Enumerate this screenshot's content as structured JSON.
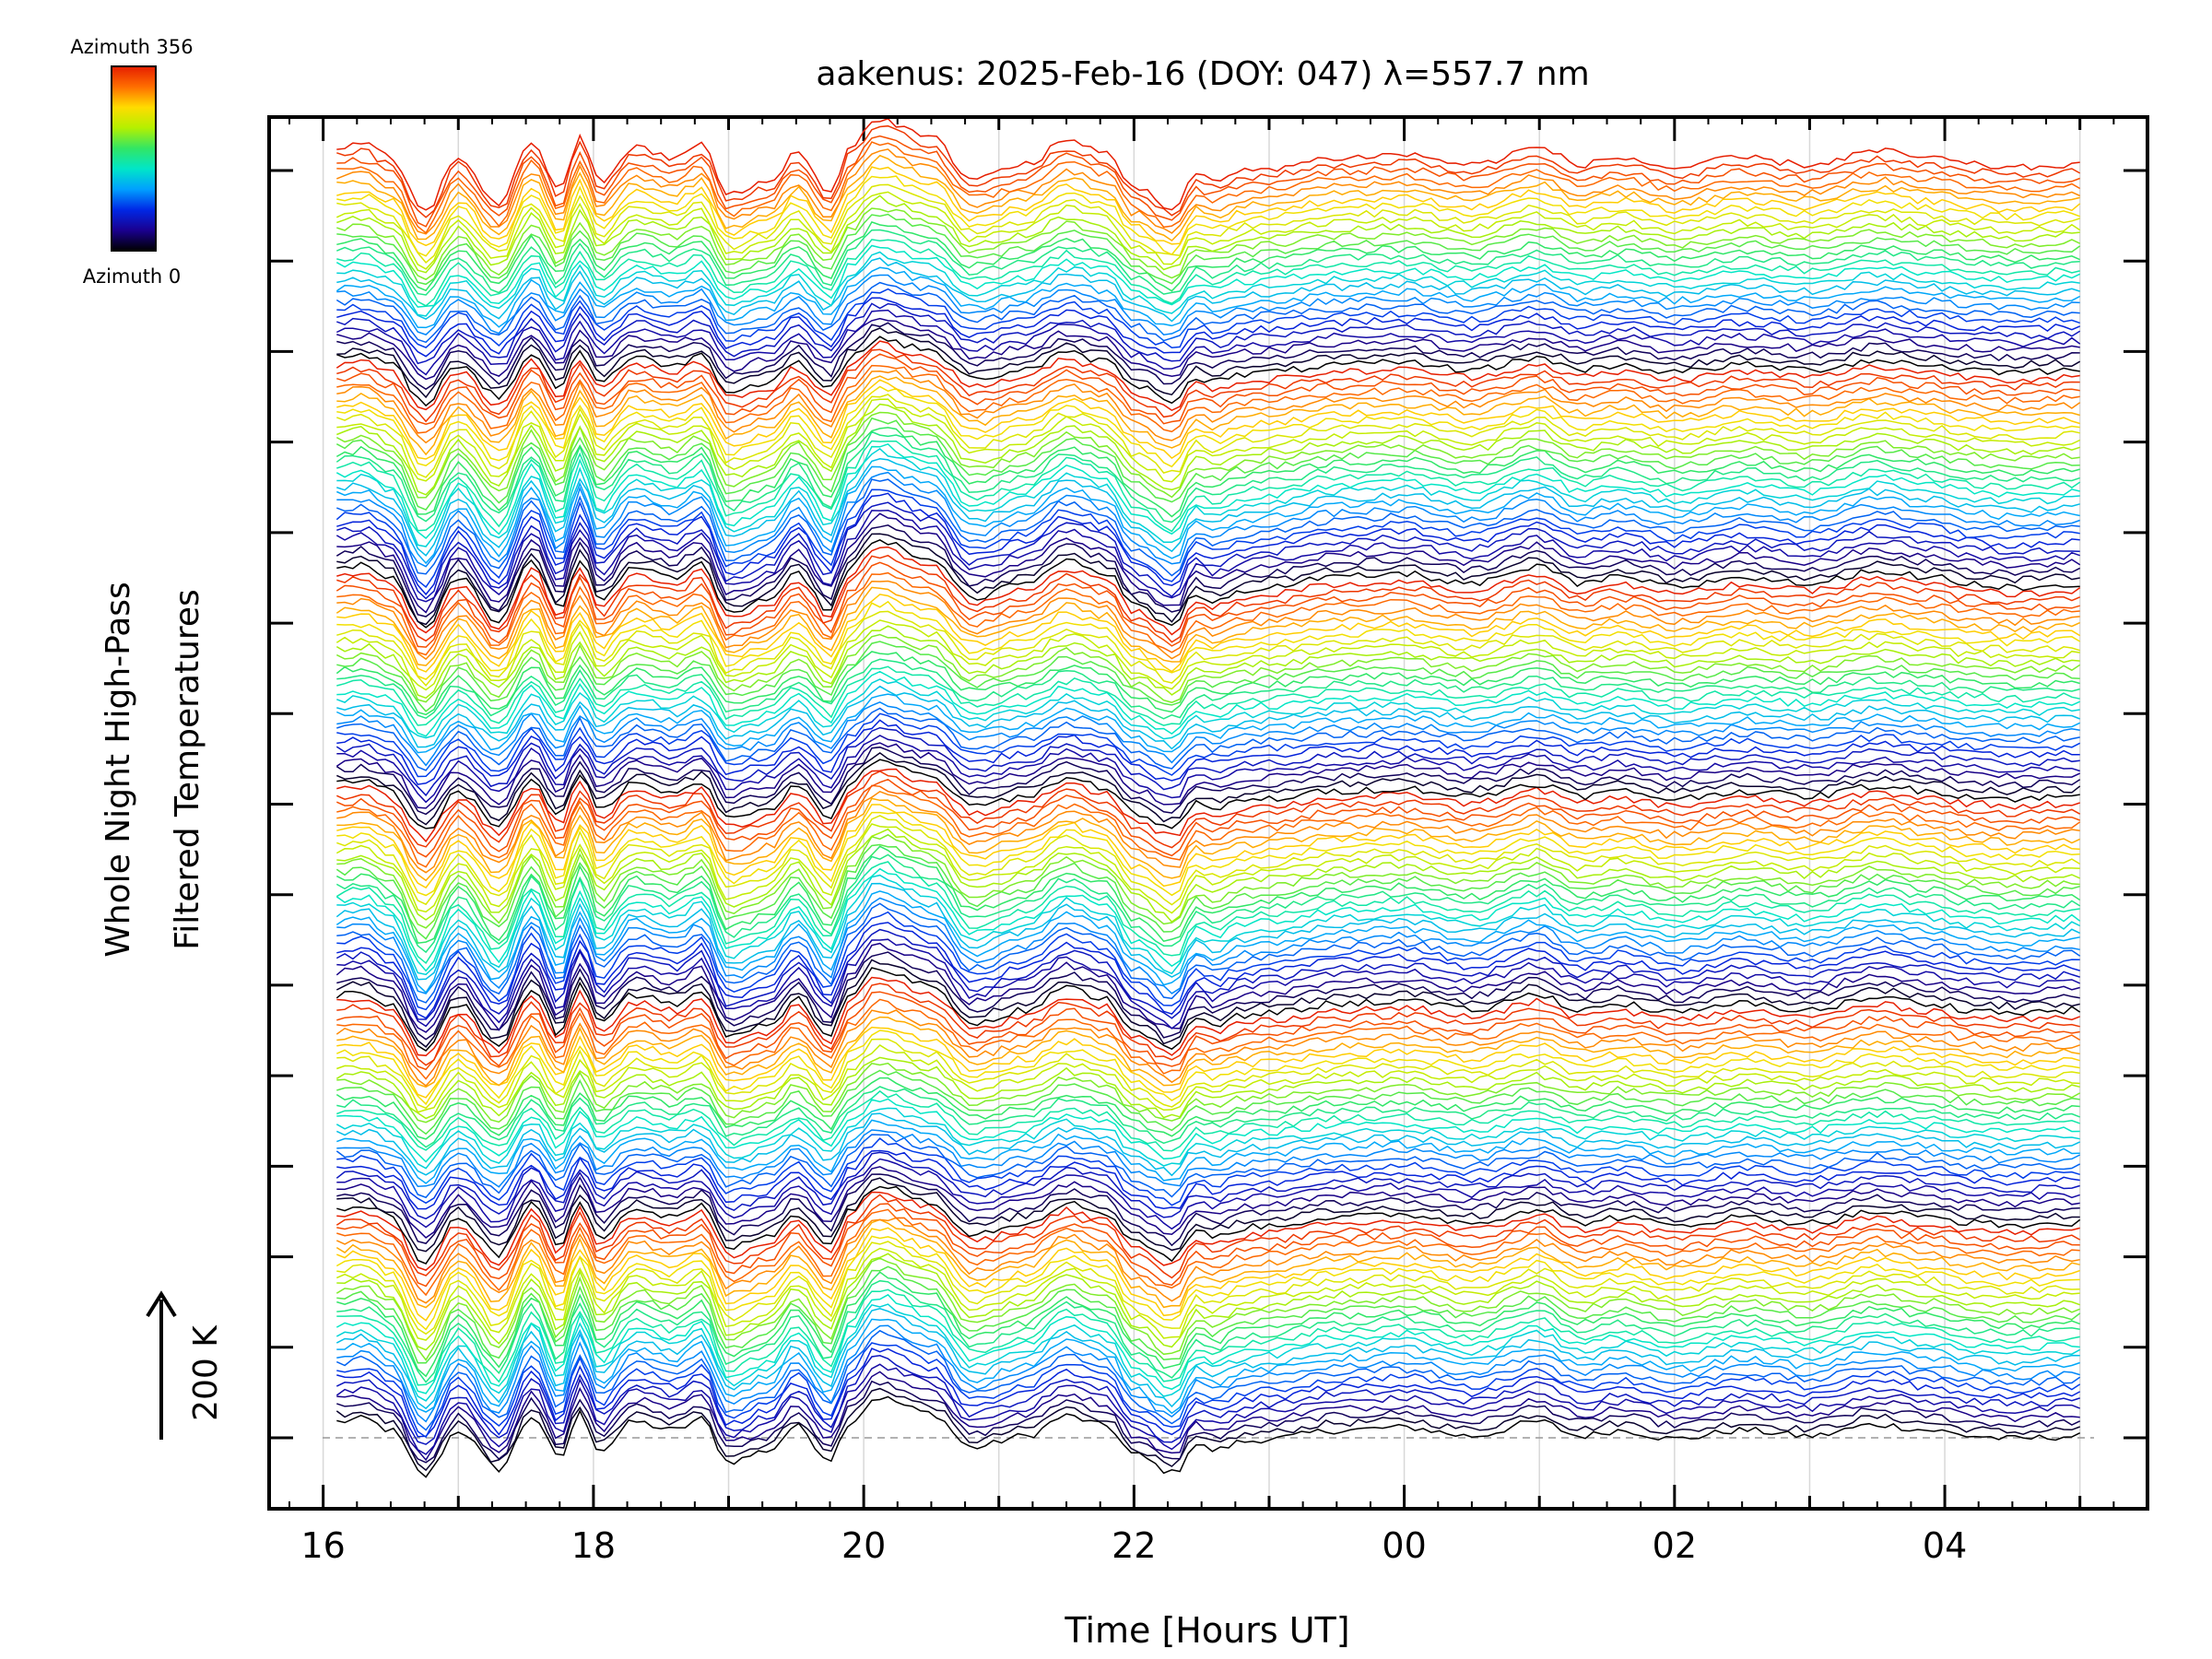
{
  "chart_data": {
    "type": "line",
    "title": "aakenus: 2025-Feb-16 (DOY: 047) λ=557.7 nm",
    "xlabel": "Time [Hours UT]",
    "ylabel_line1": "Whole Night High-Pass",
    "ylabel_line2": "Filtered Temperatures",
    "scale_label": "200 K",
    "x_ticks": [
      {
        "hour": 16,
        "label": "16"
      },
      {
        "hour": 18,
        "label": "18"
      },
      {
        "hour": 20,
        "label": "20"
      },
      {
        "hour": 22,
        "label": "22"
      },
      {
        "hour": 24,
        "label": "00"
      },
      {
        "hour": 26,
        "label": "02"
      },
      {
        "hour": 28,
        "label": "04"
      }
    ],
    "xlim": [
      15.6,
      29.5
    ],
    "x_start": 16.1,
    "x_end": 29.0,
    "y_tick_count": 15,
    "series_count": 180,
    "group_size": 30,
    "colorbar": {
      "top_label": "Azimuth 356",
      "bottom_label": "Azimuth 0",
      "colormap": "rainbow",
      "stops": [
        "#000000",
        "#1a0090",
        "#0028e6",
        "#00a0ff",
        "#00e6c8",
        "#32e664",
        "#b4f000",
        "#ffdc00",
        "#ff6e00",
        "#e61e00"
      ]
    },
    "anchor_hours": [
      16.1,
      16.3,
      16.5,
      16.75,
      17.0,
      17.3,
      17.55,
      17.75,
      17.9,
      18.05,
      18.3,
      18.6,
      18.8,
      19.0,
      19.3,
      19.5,
      19.75,
      19.9,
      20.1,
      20.5,
      20.8,
      21.2,
      21.5,
      21.8,
      22.0,
      22.3,
      22.45,
      22.6,
      22.8,
      23.0,
      23.5,
      24.0,
      24.5,
      25.0,
      25.3,
      25.6,
      26.0,
      26.5,
      27.0,
      27.5,
      27.9,
      28.2,
      28.5,
      29.0
    ],
    "anchor_values": [
      8,
      10,
      2,
      -30,
      2,
      -25,
      12,
      -18,
      14,
      -12,
      8,
      2,
      10,
      -20,
      -12,
      5,
      -18,
      8,
      25,
      14,
      -10,
      -2,
      12,
      5,
      -15,
      -28,
      -8,
      -12,
      -6,
      -4,
      2,
      4,
      -2,
      8,
      -2,
      2,
      -4,
      2,
      -2,
      6,
      2,
      -2,
      -4,
      -2
    ]
  }
}
